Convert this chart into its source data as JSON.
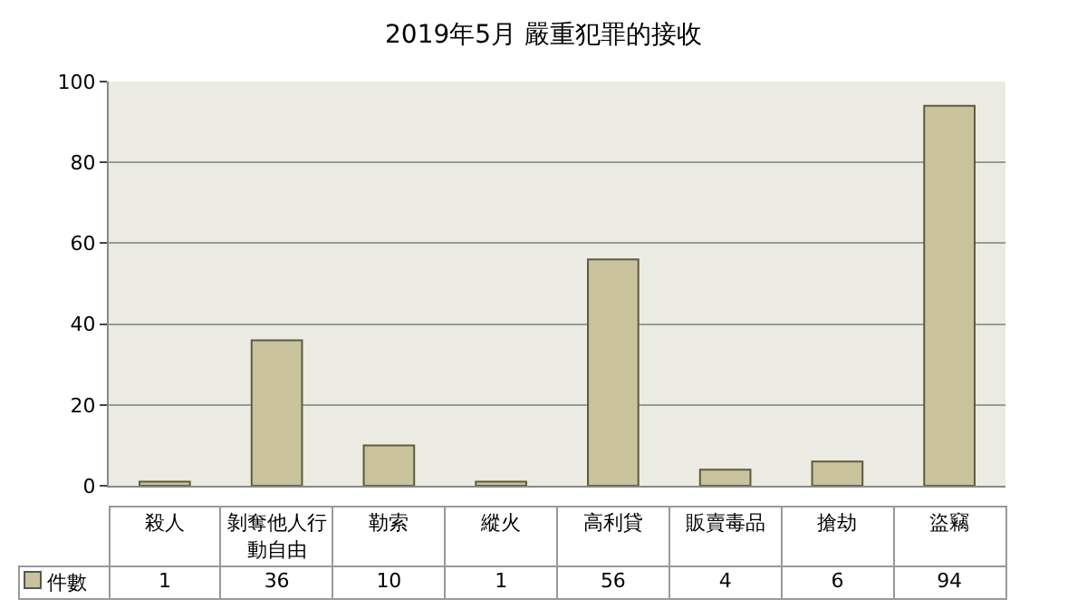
{
  "chart_data": {
    "type": "bar",
    "title": "2019年5月 嚴重犯罪的接收",
    "categories": [
      "殺人",
      "剝奪他人行動自由",
      "勒索",
      "縱火",
      "高利貸",
      "販賣毒品",
      "搶劫",
      "盜竊"
    ],
    "series": [
      {
        "name": "件數",
        "color": "#c9c29c",
        "values": [
          1,
          36,
          10,
          1,
          56,
          4,
          6,
          94
        ]
      }
    ],
    "ylim": [
      0,
      100
    ],
    "yticks": [
      0,
      20,
      40,
      60,
      80,
      100
    ],
    "grid": "y",
    "data_labels": true,
    "tick_labels": "y"
  }
}
